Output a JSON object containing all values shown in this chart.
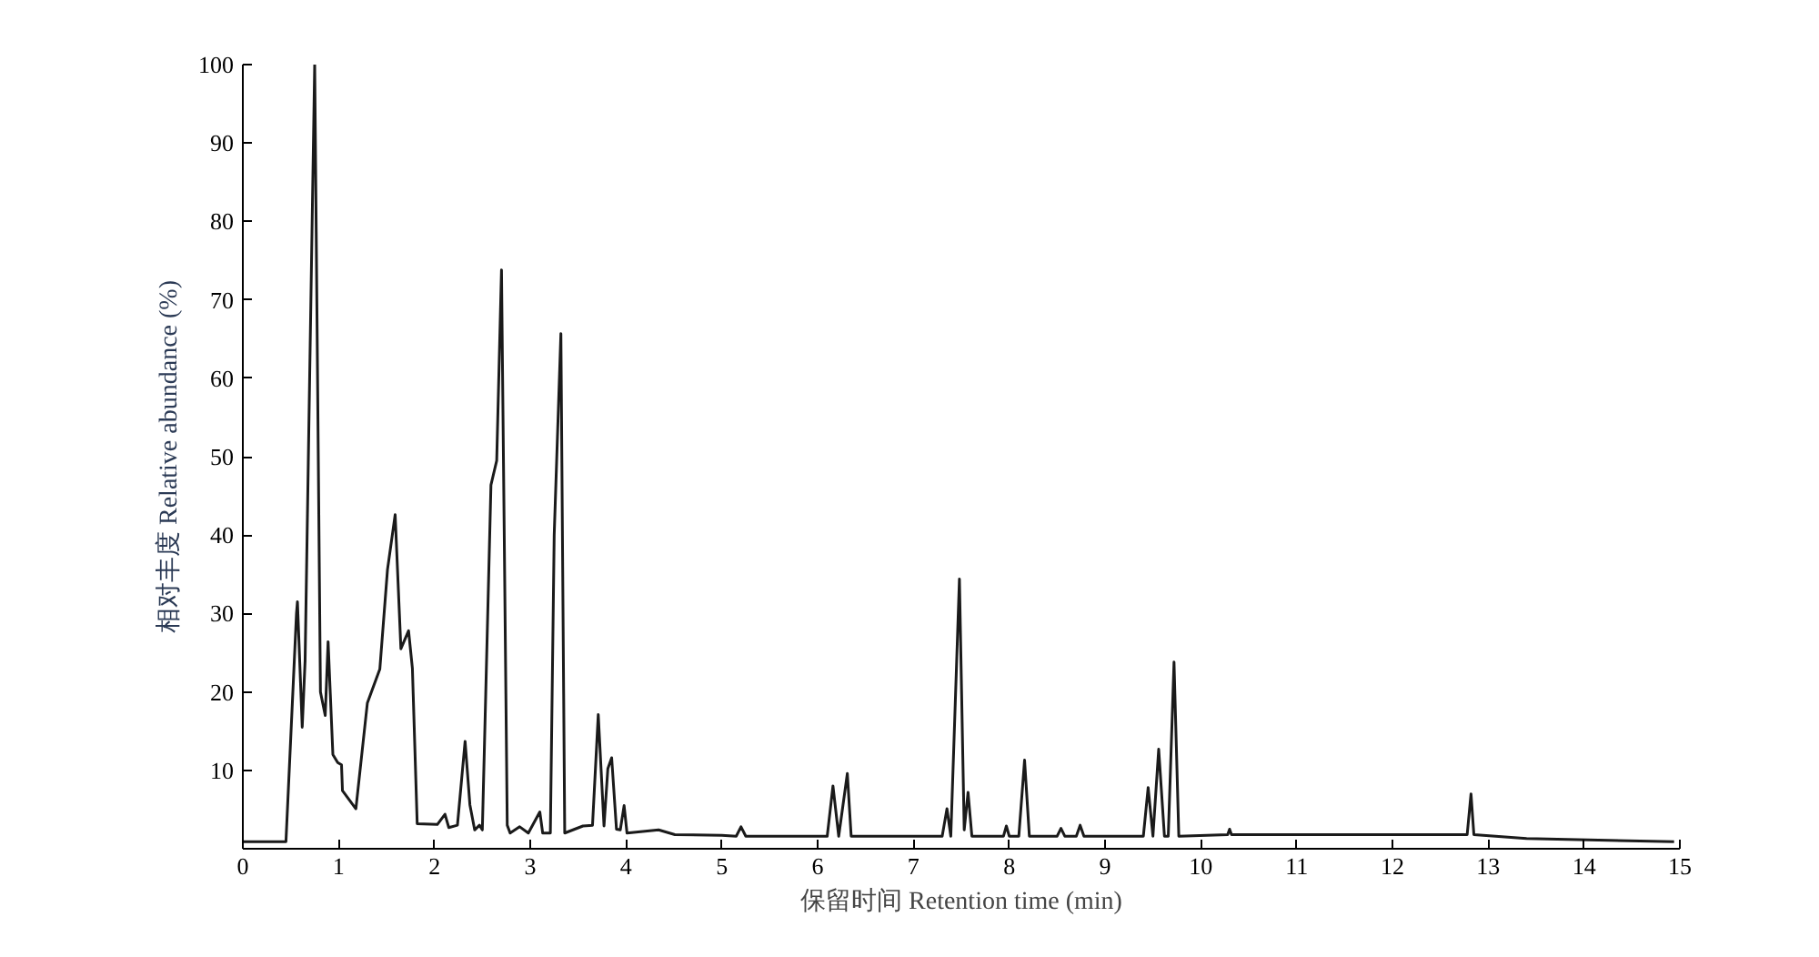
{
  "chart_data": {
    "type": "line",
    "xlabel": "保留时间 Retention time (min)",
    "ylabel": "相对丰度 Relative abundance (%)",
    "xlim": [
      0,
      15
    ],
    "ylim": [
      0,
      100
    ],
    "xticks": [
      0,
      1,
      2,
      3,
      4,
      5,
      6,
      7,
      8,
      9,
      10,
      11,
      12,
      13,
      14,
      15
    ],
    "yticks": [
      10,
      20,
      30,
      40,
      50,
      60,
      70,
      80,
      90,
      100
    ],
    "grid": false,
    "marker": "none",
    "line_style": "solid",
    "series": [
      {
        "color": "#1a1a1a",
        "x": [
          0,
          0.45,
          0.56,
          0.57,
          0.62,
          0.65,
          0.75,
          0.81,
          0.86,
          0.89,
          0.94,
          0.99,
          1.03,
          1.04,
          1.18,
          1.3,
          1.43,
          1.51,
          1.59,
          1.65,
          1.73,
          1.77,
          1.82,
          2.03,
          2.11,
          2.15,
          2.24,
          2.32,
          2.37,
          2.42,
          2.47,
          2.5,
          2.59,
          2.65,
          2.7,
          2.76,
          2.79,
          2.89,
          2.98,
          3.1,
          3.13,
          3.21,
          3.25,
          3.32,
          3.36,
          3.55,
          3.65,
          3.71,
          3.77,
          3.81,
          3.85,
          3.9,
          3.94,
          3.98,
          4.01,
          4.34,
          4.51,
          5.0,
          5.15,
          5.2,
          5.25,
          6.1,
          6.16,
          6.22,
          6.31,
          6.35,
          7.3,
          7.35,
          7.39,
          7.48,
          7.53,
          7.57,
          7.61,
          7.94,
          7.97,
          8.0,
          8.1,
          8.16,
          8.21,
          8.5,
          8.54,
          8.58,
          8.7,
          8.74,
          8.78,
          9.4,
          9.45,
          9.5,
          9.56,
          9.62,
          9.66,
          9.72,
          9.77,
          10.28,
          10.3,
          10.32,
          12.78,
          12.82,
          12.85,
          13.4,
          14.94
        ],
        "values": [
          0.9,
          0.9,
          30,
          31.5,
          15.5,
          24,
          100,
          20,
          17,
          26.4,
          12,
          11,
          10.7,
          7.4,
          5.1,
          18.6,
          22.9,
          35.6,
          42.6,
          25.5,
          27.8,
          23,
          3.2,
          3.1,
          4.4,
          2.7,
          3,
          13.7,
          5.6,
          2.4,
          3,
          2.4,
          46.4,
          49.5,
          73.8,
          3,
          2,
          2.8,
          2,
          4.7,
          2,
          2,
          40,
          65.7,
          2,
          2.9,
          3,
          17.1,
          2.9,
          10.2,
          11.6,
          2.5,
          2.4,
          5.5,
          2,
          2.4,
          1.8,
          1.7,
          1.6,
          2.8,
          1.6,
          1.6,
          8,
          1.6,
          9.6,
          1.6,
          1.6,
          5.1,
          1.6,
          34.4,
          2.4,
          7.2,
          1.6,
          1.6,
          2.9,
          1.6,
          1.6,
          11.3,
          1.6,
          1.6,
          2.6,
          1.6,
          1.6,
          3,
          1.6,
          1.6,
          7.8,
          1.6,
          12.7,
          1.6,
          1.6,
          23.8,
          1.6,
          1.8,
          2.5,
          1.8,
          1.8,
          7,
          1.8,
          1.3,
          0.9
        ]
      }
    ]
  }
}
